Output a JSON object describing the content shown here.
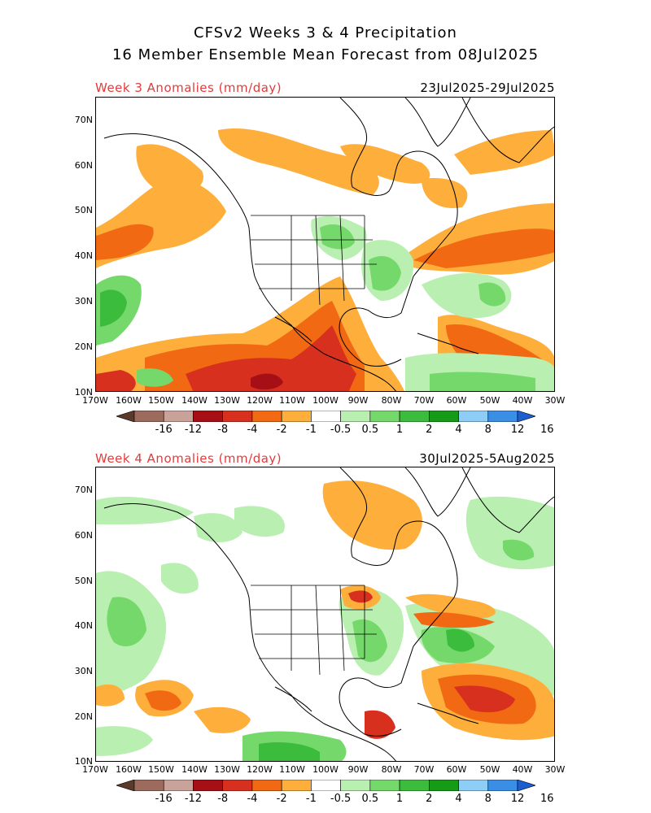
{
  "title": {
    "line1": "CFSv2 Weeks 3 & 4 Precipitation",
    "line2": "16 Member Ensemble Mean Forecast from 08Jul2025"
  },
  "panels": [
    {
      "label": "Week 3 Anomalies (mm/day)",
      "dates": "23Jul2025-29Jul2025"
    },
    {
      "label": "Week 4 Anomalies (mm/day)",
      "dates": "30Jul2025-5Aug2025"
    }
  ],
  "lat_ticks": [
    "70N",
    "60N",
    "50N",
    "40N",
    "30N",
    "20N",
    "10N"
  ],
  "lon_ticks": [
    "170W",
    "160W",
    "150W",
    "140W",
    "130W",
    "120W",
    "110W",
    "100W",
    "90W",
    "80W",
    "70W",
    "60W",
    "50W",
    "40W",
    "30W"
  ],
  "colorbar": {
    "labels": [
      "-16",
      "-12",
      "-8",
      "-4",
      "-2",
      "-1",
      "-0.5",
      "0.5",
      "1",
      "2",
      "4",
      "8",
      "12",
      "16"
    ],
    "colors": [
      "#5a3a2a",
      "#9c6b5e",
      "#c9a39a",
      "#a50f15",
      "#d7301f",
      "#f16913",
      "#fdae3b",
      "#ffffff",
      "#b9efb0",
      "#74d96a",
      "#3cbc3c",
      "#159b15",
      "#8ecdf5",
      "#3a8ee6",
      "#1c5fd0"
    ]
  }
}
